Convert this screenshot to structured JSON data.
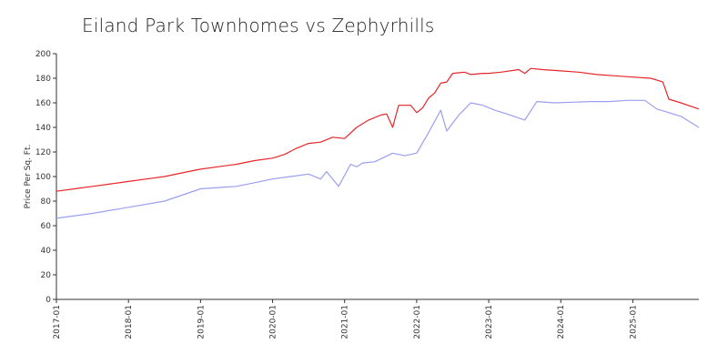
{
  "chart_data": {
    "type": "line",
    "title": "Eiland Park Townhomes vs Zephyrhills",
    "xlabel": "",
    "ylabel": "Price Per Sq. Ft.",
    "ylim": [
      0,
      200
    ],
    "yticks": [
      0,
      20,
      40,
      60,
      80,
      100,
      120,
      140,
      160,
      180,
      200
    ],
    "xlim": [
      "2017-01",
      "2025-12"
    ],
    "xticks": [
      "2017-01",
      "2018-01",
      "2019-01",
      "2020-01",
      "2021-01",
      "2022-01",
      "2023-01",
      "2024-01",
      "2025-01"
    ],
    "grid": false,
    "legend": "none",
    "series": [
      {
        "color": "#e8262a",
        "points": [
          [
            "2017-01",
            88
          ],
          [
            "2017-04",
            90
          ],
          [
            "2017-07",
            92
          ],
          [
            "2017-10",
            94
          ],
          [
            "2018-01",
            96
          ],
          [
            "2018-04",
            98
          ],
          [
            "2018-07",
            100
          ],
          [
            "2018-10",
            103
          ],
          [
            "2019-01",
            106
          ],
          [
            "2019-04",
            108
          ],
          [
            "2019-07",
            110
          ],
          [
            "2019-10",
            113
          ],
          [
            "2020-01",
            115
          ],
          [
            "2020-03",
            118
          ],
          [
            "2020-05",
            123
          ],
          [
            "2020-07",
            127
          ],
          [
            "2020-09",
            128
          ],
          [
            "2020-11",
            132
          ],
          [
            "2021-01",
            131
          ],
          [
            "2021-03",
            140
          ],
          [
            "2021-05",
            146
          ],
          [
            "2021-07",
            150
          ],
          [
            "2021-08",
            151
          ],
          [
            "2021-09",
            140
          ],
          [
            "2021-10",
            158
          ],
          [
            "2021-12",
            158
          ],
          [
            "2022-01",
            152
          ],
          [
            "2022-02",
            156
          ],
          [
            "2022-03",
            164
          ],
          [
            "2022-04",
            168
          ],
          [
            "2022-05",
            176
          ],
          [
            "2022-06",
            177
          ],
          [
            "2022-07",
            184
          ],
          [
            "2022-09",
            185
          ],
          [
            "2022-10",
            183
          ],
          [
            "2022-12",
            184
          ],
          [
            "2023-01",
            184
          ],
          [
            "2023-03",
            185
          ],
          [
            "2023-06",
            187
          ],
          [
            "2023-07",
            184
          ],
          [
            "2023-08",
            188
          ],
          [
            "2023-10",
            187
          ],
          [
            "2024-01",
            186
          ],
          [
            "2024-04",
            185
          ],
          [
            "2024-07",
            183
          ],
          [
            "2024-10",
            182
          ],
          [
            "2025-01",
            181
          ],
          [
            "2025-04",
            180
          ],
          [
            "2025-06",
            177
          ],
          [
            "2025-07",
            163
          ],
          [
            "2025-09",
            160
          ],
          [
            "2025-12",
            155
          ]
        ]
      },
      {
        "color": "#9b9ff0",
        "points": [
          [
            "2017-01",
            66
          ],
          [
            "2017-07",
            70
          ],
          [
            "2018-01",
            75
          ],
          [
            "2018-07",
            80
          ],
          [
            "2019-01",
            90
          ],
          [
            "2019-04",
            91
          ],
          [
            "2019-07",
            92
          ],
          [
            "2019-10",
            95
          ],
          [
            "2020-01",
            98
          ],
          [
            "2020-04",
            100
          ],
          [
            "2020-07",
            102
          ],
          [
            "2020-09",
            98
          ],
          [
            "2020-10",
            104
          ],
          [
            "2020-12",
            92
          ],
          [
            "2021-02",
            110
          ],
          [
            "2021-03",
            108
          ],
          [
            "2021-04",
            111
          ],
          [
            "2021-06",
            112
          ],
          [
            "2021-09",
            119
          ],
          [
            "2021-11",
            117
          ],
          [
            "2022-01",
            119
          ],
          [
            "2022-03",
            136
          ],
          [
            "2022-05",
            154
          ],
          [
            "2022-06",
            137
          ],
          [
            "2022-08",
            150
          ],
          [
            "2022-10",
            160
          ],
          [
            "2022-12",
            158
          ],
          [
            "2023-02",
            154
          ],
          [
            "2023-04",
            151
          ],
          [
            "2023-07",
            146
          ],
          [
            "2023-09",
            161
          ],
          [
            "2023-12",
            160
          ],
          [
            "2024-06",
            161
          ],
          [
            "2024-09",
            161
          ],
          [
            "2024-12",
            162
          ],
          [
            "2025-03",
            162
          ],
          [
            "2025-05",
            155
          ],
          [
            "2025-07",
            152
          ],
          [
            "2025-09",
            149
          ],
          [
            "2025-12",
            140
          ]
        ]
      }
    ]
  }
}
